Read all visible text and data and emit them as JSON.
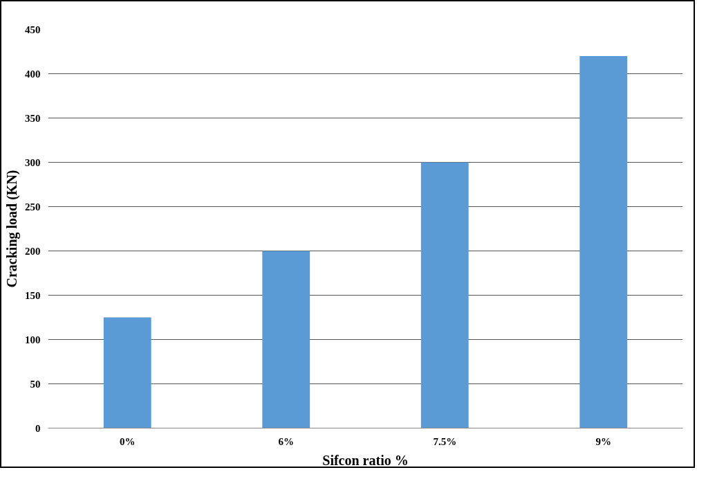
{
  "chart_data": {
    "type": "bar",
    "xlabel": "Sifcon ratio %",
    "ylabel": "Cracking load (KN)",
    "categories": [
      "0%",
      "6%",
      "7.5%",
      "9%"
    ],
    "values": [
      125,
      200,
      300,
      420
    ],
    "color": "#5b9bd5",
    "ylim": [
      0,
      450
    ],
    "yticks": [
      0,
      50,
      100,
      150,
      200,
      250,
      300,
      350,
      400,
      450
    ],
    "grid": "y"
  }
}
